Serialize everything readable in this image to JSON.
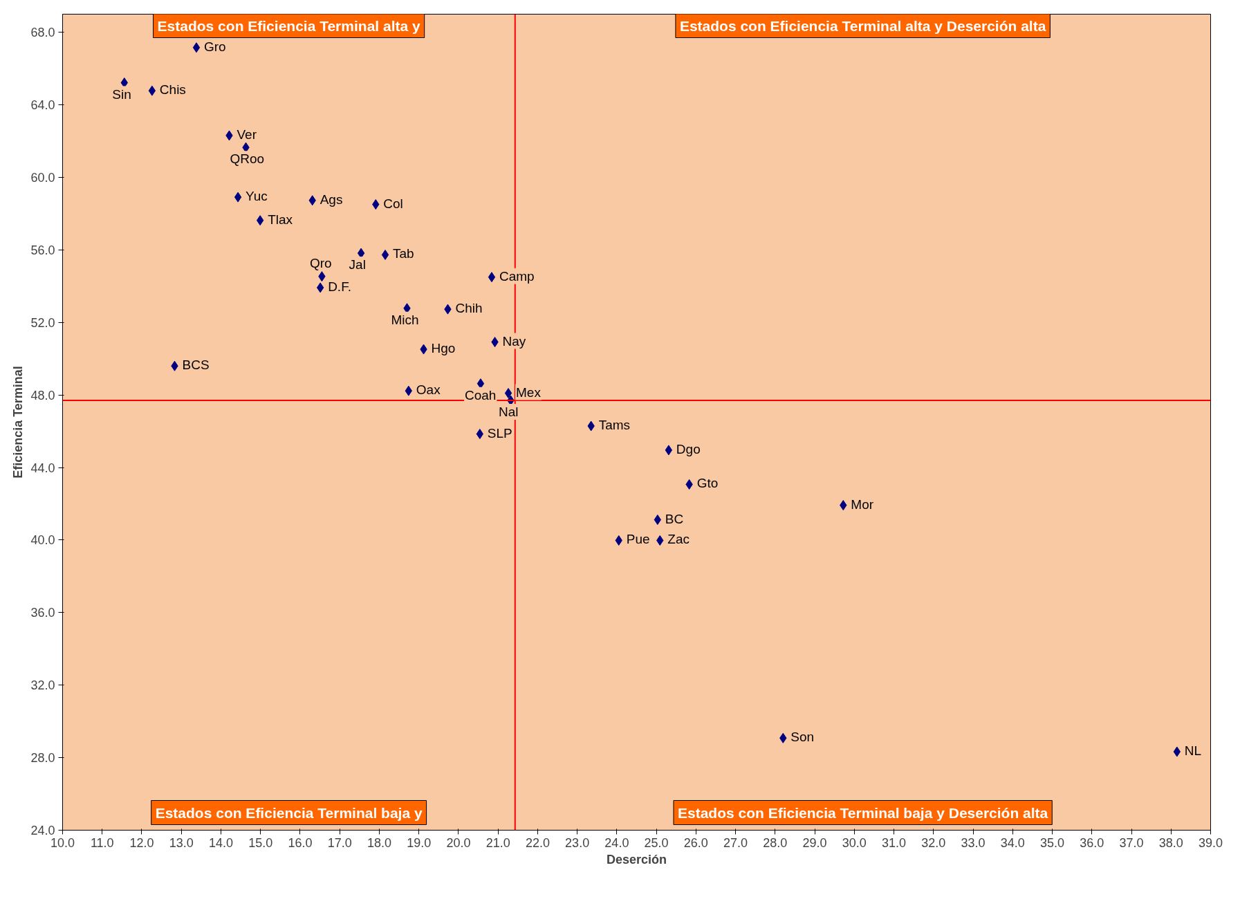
{
  "chart_data": {
    "type": "scatter",
    "xlabel": "Deserción",
    "ylabel": "Eficiencia Terminal",
    "x": [
      11.56,
      12.26,
      13.38,
      14.21,
      14.63,
      14.43,
      14.99,
      16.31,
      17.91,
      17.54,
      18.15,
      16.55,
      16.51,
      20.84,
      18.7,
      19.73,
      20.92,
      19.12,
      12.83,
      20.56,
      18.74,
      21.26,
      21.32,
      20.54,
      23.35,
      25.31,
      25.83,
      29.72,
      25.03,
      24.05,
      25.09,
      28.2,
      38.15
    ],
    "series": [
      {
        "color": "#000080",
        "values": [
          65.22,
          64.78,
          67.16,
          62.31,
          61.65,
          58.91,
          57.63,
          58.73,
          58.51,
          55.82,
          55.73,
          54.54,
          53.92,
          54.5,
          52.78,
          52.73,
          50.92,
          50.52,
          49.6,
          48.63,
          48.23,
          48.1,
          47.7,
          45.85,
          46.29,
          44.96,
          43.07,
          41.92,
          41.12,
          39.98,
          39.98,
          29.08,
          28.33
        ]
      }
    ],
    "marker": "diamond",
    "xlim": [
      10,
      39
    ],
    "xticks": [
      {
        "value": 10,
        "label": "10.0"
      },
      {
        "value": 11,
        "label": "11.0"
      },
      {
        "value": 12,
        "label": "12.0"
      },
      {
        "value": 13,
        "label": "13.0"
      },
      {
        "value": 14,
        "label": "14.0"
      },
      {
        "value": 15,
        "label": "15.0"
      },
      {
        "value": 16,
        "label": "16.0"
      },
      {
        "value": 17,
        "label": "17.0"
      },
      {
        "value": 18,
        "label": "18.0"
      },
      {
        "value": 19,
        "label": "19.0"
      },
      {
        "value": 20,
        "label": "20.0"
      },
      {
        "value": 21,
        "label": "21.0"
      },
      {
        "value": 22,
        "label": "22.0"
      },
      {
        "value": 23,
        "label": "23.0"
      },
      {
        "value": 24,
        "label": "24.0"
      },
      {
        "value": 25,
        "label": "25.0"
      },
      {
        "value": 26,
        "label": "26.0"
      },
      {
        "value": 27,
        "label": "27.0"
      },
      {
        "value": 28,
        "label": "28.0"
      },
      {
        "value": 29,
        "label": "29.0"
      },
      {
        "value": 30,
        "label": "30.0"
      },
      {
        "value": 31,
        "label": "31.0"
      },
      {
        "value": 32,
        "label": "32.0"
      },
      {
        "value": 33,
        "label": "33.0"
      },
      {
        "value": 34,
        "label": "34.0"
      },
      {
        "value": 35,
        "label": "35.0"
      },
      {
        "value": 36,
        "label": "36.0"
      },
      {
        "value": 37,
        "label": "37.0"
      },
      {
        "value": 38,
        "label": "38.0"
      },
      {
        "value": 39,
        "label": "39.0"
      }
    ],
    "ylim": [
      24,
      69
    ],
    "yticks": [
      {
        "value": 24,
        "label": "24.0"
      },
      {
        "value": 28,
        "label": "28.0"
      },
      {
        "value": 32,
        "label": "32.0"
      },
      {
        "value": 36,
        "label": "36.0"
      },
      {
        "value": 40,
        "label": "40.0"
      },
      {
        "value": 44,
        "label": "44.0"
      },
      {
        "value": 48,
        "label": "48.0"
      },
      {
        "value": 52,
        "label": "52.0"
      },
      {
        "value": 56,
        "label": "56.0"
      },
      {
        "value": 60,
        "label": "60.0"
      },
      {
        "value": 64,
        "label": "64.0"
      },
      {
        "value": 68,
        "label": "68.0"
      }
    ],
    "grid": false,
    "ref_lines": [
      {
        "axis": "x",
        "value": 21.43,
        "color": "#ff0000"
      },
      {
        "axis": "y",
        "value": 47.7,
        "color": "#ff0000"
      }
    ],
    "annotations": [
      {
        "text": "Sin",
        "x": 11.56,
        "y": 65.22
      },
      {
        "text": "Chis",
        "x": 12.26,
        "y": 64.78
      },
      {
        "text": "Gro",
        "x": 13.38,
        "y": 67.16
      },
      {
        "text": "Ver",
        "x": 14.21,
        "y": 62.31
      },
      {
        "text": "QRoo",
        "x": 14.63,
        "y": 61.65
      },
      {
        "text": "Yuc",
        "x": 14.43,
        "y": 58.91
      },
      {
        "text": "Tlax",
        "x": 14.99,
        "y": 57.63
      },
      {
        "text": "Ags",
        "x": 16.31,
        "y": 58.73
      },
      {
        "text": "Col",
        "x": 17.91,
        "y": 58.51
      },
      {
        "text": "Jal",
        "x": 17.54,
        "y": 55.82
      },
      {
        "text": "Tab",
        "x": 18.15,
        "y": 55.73
      },
      {
        "text": "Qro",
        "x": 16.55,
        "y": 54.54
      },
      {
        "text": "D.F.",
        "x": 16.51,
        "y": 53.92
      },
      {
        "text": "Camp",
        "x": 20.84,
        "y": 54.5
      },
      {
        "text": "Mich",
        "x": 18.7,
        "y": 52.78
      },
      {
        "text": "Chih",
        "x": 19.73,
        "y": 52.73
      },
      {
        "text": "Nay",
        "x": 20.92,
        "y": 50.92
      },
      {
        "text": "Hgo",
        "x": 19.12,
        "y": 50.52
      },
      {
        "text": "BCS",
        "x": 12.83,
        "y": 49.6
      },
      {
        "text": "Coah",
        "x": 20.56,
        "y": 48.63
      },
      {
        "text": "Oax",
        "x": 18.74,
        "y": 48.23
      },
      {
        "text": "Mex",
        "x": 21.26,
        "y": 48.1
      },
      {
        "text": "Nal",
        "x": 21.32,
        "y": 47.7
      },
      {
        "text": "SLP",
        "x": 20.54,
        "y": 45.85
      },
      {
        "text": "Tams",
        "x": 23.35,
        "y": 46.29
      },
      {
        "text": "Dgo",
        "x": 25.31,
        "y": 44.96
      },
      {
        "text": "Gto",
        "x": 25.83,
        "y": 43.07
      },
      {
        "text": "Mor",
        "x": 29.72,
        "y": 41.92
      },
      {
        "text": "BC",
        "x": 25.03,
        "y": 41.12
      },
      {
        "text": "Pue",
        "x": 24.05,
        "y": 39.98
      },
      {
        "text": "Zac",
        "x": 25.09,
        "y": 39.98
      },
      {
        "text": "Son",
        "x": 28.2,
        "y": 29.08
      },
      {
        "text": "NL",
        "x": 38.15,
        "y": 28.33
      },
      "Estados con Eficiencia Terminal alta y",
      "Estados con Eficiencia Terminal alta y Deserción alta",
      "Estados con Eficiencia Terminal baja y",
      "Estados con Eficiencia Terminal baja y Deserción alta"
    ]
  }
}
